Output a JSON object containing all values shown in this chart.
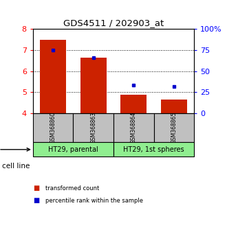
{
  "title": "GDS4511 / 202903_at",
  "samples": [
    "GSM368860",
    "GSM368863",
    "GSM368864",
    "GSM368865"
  ],
  "red_values": [
    7.5,
    6.65,
    4.88,
    4.65
  ],
  "blue_values": [
    7.0,
    6.65,
    5.35,
    5.28
  ],
  "ymin": 4.0,
  "ymax": 8.0,
  "yticks": [
    4,
    5,
    6,
    7,
    8
  ],
  "y2ticks": [
    0,
    25,
    50,
    75,
    100
  ],
  "y2labels": [
    "0",
    "25",
    "50",
    "75",
    "100%"
  ],
  "bar_color": "#CC2200",
  "dot_color": "#0000CC",
  "sample_label_bg": "#C0C0C0",
  "cell_line_color": "#90EE90",
  "bar_bottom": 4.0,
  "bar_width": 0.65,
  "legend_red_label": "transformed count",
  "legend_blue_label": "percentile rank within the sample",
  "groups": [
    {
      "label": "HT29, parental",
      "start": 0,
      "end": 1
    },
    {
      "label": "HT29, 1st spheres",
      "start": 2,
      "end": 3
    }
  ]
}
